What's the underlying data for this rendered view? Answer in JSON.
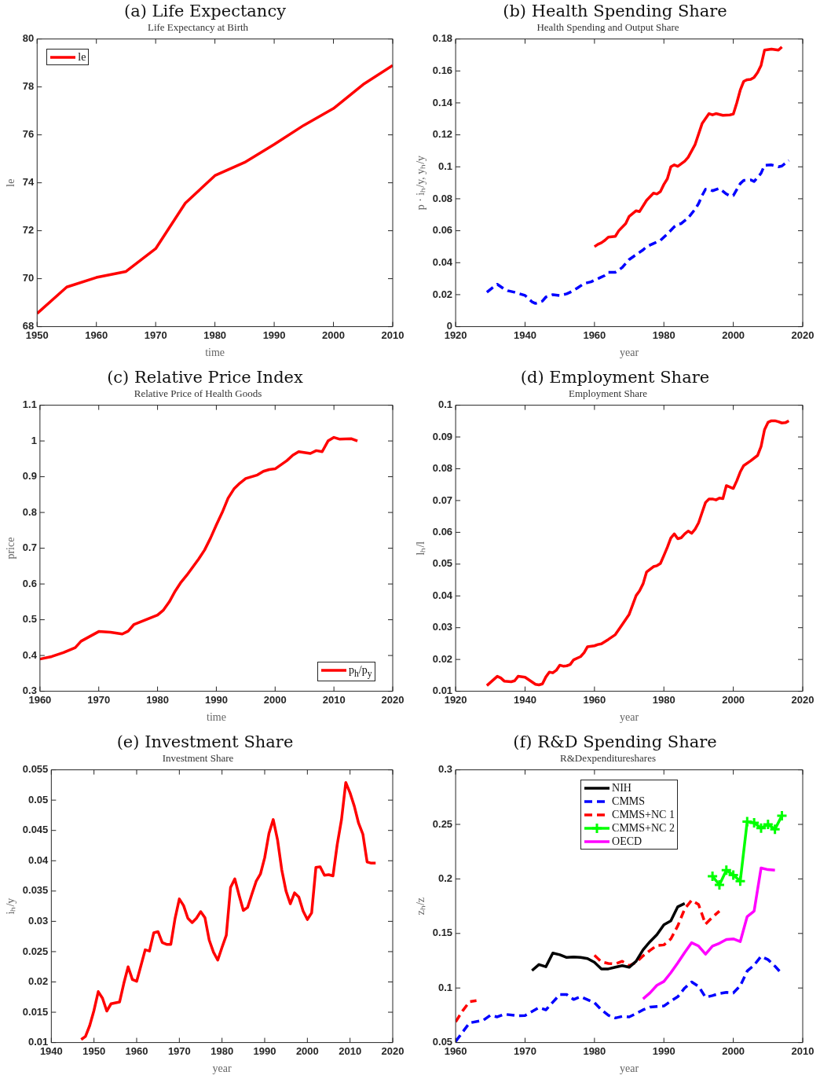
{
  "chart_data": [
    {
      "type": "line",
      "title": "(a) Life Expectancy",
      "subtitle": "Life Expectancy at Birth",
      "xlabel": "time",
      "ylabel": "le",
      "legend": "top left",
      "xlim": [
        1950,
        2010
      ],
      "xticks": [
        1950,
        1960,
        1970,
        1980,
        1990,
        2000,
        2010
      ],
      "ylim": [
        68,
        80
      ],
      "yticks": [
        68,
        70,
        72,
        74,
        76,
        78,
        80
      ],
      "series": [
        {
          "name": "le",
          "color": "#ff0000",
          "line_style": "solid",
          "x": [
            1950,
            1955,
            1960,
            1965,
            1970,
            1975,
            1980,
            1985,
            1990,
            1995,
            2000,
            2005,
            2010
          ],
          "values": [
            68.55,
            69.65,
            70.05,
            70.3,
            71.25,
            73.15,
            74.3,
            74.85,
            75.6,
            76.4,
            77.1,
            78.1,
            78.9
          ]
        }
      ]
    },
    {
      "type": "line",
      "title": "(b) Health Spending Share",
      "subtitle": "Health Spending and Output Share",
      "xlabel": "year",
      "ylabel": "p · iₕ/y, yₕ/y",
      "xlim": [
        1920,
        2020
      ],
      "xticks": [
        1920,
        1940,
        1960,
        1980,
        2000,
        2020
      ],
      "ylim": [
        0,
        0.18
      ],
      "yticks": [
        0,
        0.02,
        0.04,
        0.06,
        0.08,
        0.1,
        0.12,
        0.14,
        0.16,
        0.18
      ],
      "series": [
        {
          "color": "#ff0000",
          "line_style": "solid",
          "x": [
            1960,
            1961,
            1962,
            1963,
            1964,
            1966,
            1967,
            1969,
            1970,
            1972,
            1973,
            1975,
            1977,
            1978,
            1979,
            1980,
            1981,
            1982,
            1983,
            1984,
            1986,
            1987,
            1989,
            1991,
            1993,
            1994,
            1995,
            1997,
            1999,
            2000,
            2001,
            2002,
            2003,
            2004,
            2005,
            2006,
            2007,
            2008,
            2009,
            2011,
            2013,
            2014
          ],
          "values": [
            0.05,
            0.0515,
            0.0525,
            0.054,
            0.056,
            0.0565,
            0.06,
            0.0645,
            0.069,
            0.0725,
            0.072,
            0.079,
            0.0835,
            0.083,
            0.0845,
            0.089,
            0.0925,
            0.1,
            0.1012,
            0.1003,
            0.1035,
            0.106,
            0.114,
            0.127,
            0.1333,
            0.1325,
            0.1333,
            0.1322,
            0.1325,
            0.133,
            0.14,
            0.148,
            0.1535,
            0.1545,
            0.1547,
            0.156,
            0.159,
            0.1635,
            0.173,
            0.1737,
            0.173,
            0.175
          ]
        },
        {
          "color": "#0000ff",
          "line_style": "dashed",
          "x": [
            1929,
            1931,
            1932,
            1934,
            1935,
            1937,
            1940,
            1941,
            1942,
            1943,
            1945,
            1946,
            1948,
            1950,
            1952,
            1953,
            1955,
            1957,
            1959,
            1961,
            1963,
            1964,
            1966,
            1968,
            1970,
            1972,
            1974,
            1975,
            1977,
            1979,
            1981,
            1983,
            1984,
            1985,
            1987,
            1989,
            1990,
            1991,
            1992,
            1993,
            1994,
            1996,
            1998,
            1999,
            2000,
            2002,
            2003,
            2005,
            2006,
            2008,
            2009,
            2011,
            2013,
            2014,
            2016
          ],
          "values": [
            0.0215,
            0.025,
            0.0265,
            0.0235,
            0.0225,
            0.0215,
            0.0195,
            0.0175,
            0.0155,
            0.0145,
            0.016,
            0.0185,
            0.02,
            0.0195,
            0.0205,
            0.0215,
            0.024,
            0.027,
            0.028,
            0.03,
            0.032,
            0.034,
            0.034,
            0.037,
            0.042,
            0.045,
            0.048,
            0.05,
            0.052,
            0.054,
            0.058,
            0.0625,
            0.064,
            0.0645,
            0.068,
            0.0735,
            0.077,
            0.082,
            0.086,
            0.086,
            0.085,
            0.0865,
            0.083,
            0.0818,
            0.082,
            0.0895,
            0.0915,
            0.0918,
            0.0908,
            0.096,
            0.101,
            0.1012,
            0.1,
            0.1005,
            0.104
          ]
        }
      ]
    },
    {
      "type": "line",
      "title": "(c) Relative Price Index",
      "subtitle": "Relative Price of Health Goods",
      "xlabel": "time",
      "ylabel": "price",
      "legend": "bottom right",
      "xlim": [
        1960,
        2020
      ],
      "xticks": [
        1960,
        1970,
        1980,
        1990,
        2000,
        2010,
        2020
      ],
      "ylim": [
        0.3,
        1.1
      ],
      "yticks": [
        0.3,
        0.4,
        0.5,
        0.6,
        0.7,
        0.8,
        0.9,
        1,
        1.1
      ],
      "series": [
        {
          "name": "p$_{h}$/p$_{y}$",
          "color": "#ff0000",
          "line_style": "solid",
          "x": [
            1960,
            1962,
            1964,
            1966,
            1967,
            1970,
            1972,
            1974,
            1975,
            1976,
            1978,
            1980,
            1981,
            1982,
            1983,
            1984,
            1985,
            1987,
            1988,
            1989,
            1990,
            1991,
            1992,
            1993,
            1994,
            1995,
            1997,
            1998,
            1999,
            2000,
            2002,
            2003,
            2004,
            2006,
            2007,
            2008,
            2009,
            2010,
            2011,
            2013,
            2014
          ],
          "values": [
            0.39,
            0.397,
            0.408,
            0.422,
            0.44,
            0.467,
            0.465,
            0.46,
            0.468,
            0.487,
            0.5,
            0.513,
            0.527,
            0.55,
            0.58,
            0.605,
            0.625,
            0.67,
            0.695,
            0.728,
            0.765,
            0.8,
            0.84,
            0.866,
            0.882,
            0.895,
            0.905,
            0.915,
            0.92,
            0.922,
            0.945,
            0.96,
            0.97,
            0.965,
            0.973,
            0.97,
            1,
            1.01,
            1.005,
            1.006,
            1
          ]
        }
      ]
    },
    {
      "type": "line",
      "title": "(d) Employment Share",
      "subtitle": "Employment Share",
      "xlabel": "year",
      "ylabel": "lₕ/l",
      "xlim": [
        1920,
        2020
      ],
      "xticks": [
        1920,
        1940,
        1960,
        1980,
        2000,
        2020
      ],
      "ylim": [
        0.01,
        0.1
      ],
      "yticks": [
        0.01,
        0.02,
        0.03,
        0.04,
        0.05,
        0.06,
        0.07,
        0.08,
        0.09,
        0.1
      ],
      "series": [
        {
          "color": "#ff0000",
          "line_style": "solid",
          "x": [
            1929,
            1932,
            1933,
            1934,
            1936,
            1937,
            1938,
            1940,
            1943,
            1944,
            1945,
            1946,
            1947,
            1948,
            1949,
            1950,
            1951,
            1952,
            1953,
            1954,
            1956,
            1957,
            1958,
            1960,
            1961,
            1962,
            1964,
            1966,
            1968,
            1970,
            1972,
            1973,
            1974,
            1975,
            1977,
            1978,
            1979,
            1980,
            1981,
            1982,
            1983,
            1984,
            1985,
            1986,
            1987,
            1988,
            1989,
            1990,
            1991,
            1992,
            1993,
            1994,
            1995,
            1996,
            1997,
            1998,
            2000,
            2001,
            2002,
            2003,
            2005,
            2007,
            2008,
            2009,
            2010,
            2011,
            2012,
            2013,
            2014,
            2015,
            2016
          ],
          "values": [
            0.0118,
            0.0147,
            0.0142,
            0.0132,
            0.013,
            0.0133,
            0.0147,
            0.0144,
            0.0122,
            0.012,
            0.0123,
            0.0145,
            0.016,
            0.0158,
            0.0166,
            0.0182,
            0.0179,
            0.018,
            0.0184,
            0.0199,
            0.0209,
            0.0221,
            0.024,
            0.0243,
            0.0247,
            0.0249,
            0.0263,
            0.0278,
            0.031,
            0.0342,
            0.0401,
            0.0416,
            0.0438,
            0.0475,
            0.0492,
            0.0495,
            0.0502,
            0.0527,
            0.0553,
            0.0582,
            0.0595,
            0.058,
            0.0583,
            0.0595,
            0.0604,
            0.0597,
            0.061,
            0.063,
            0.0662,
            0.0694,
            0.0705,
            0.0705,
            0.0702,
            0.0708,
            0.0706,
            0.0747,
            0.0738,
            0.0762,
            0.079,
            0.081,
            0.0825,
            0.0842,
            0.087,
            0.0923,
            0.0946,
            0.0951,
            0.0951,
            0.0948,
            0.0944,
            0.0945,
            0.0951
          ]
        }
      ]
    },
    {
      "type": "line",
      "title": "(e) Investment Share",
      "subtitle": "Investment Share",
      "xlabel": "year",
      "ylabel": "iₕ/y",
      "xlim": [
        1940,
        2020
      ],
      "xticks": [
        1940,
        1950,
        1960,
        1970,
        1980,
        1990,
        2000,
        2010,
        2020
      ],
      "ylim": [
        0.01,
        0.055
      ],
      "yticks": [
        0.01,
        0.015,
        0.02,
        0.025,
        0.03,
        0.035,
        0.04,
        0.045,
        0.05,
        0.055
      ],
      "series": [
        {
          "color": "#ff0000",
          "line_style": "solid",
          "x": [
            1947,
            1948,
            1949,
            1950,
            1951,
            1952,
            1953,
            1954,
            1956,
            1957,
            1958,
            1959,
            1960,
            1961,
            1962,
            1963,
            1964,
            1965,
            1966,
            1967,
            1968,
            1969,
            1970,
            1971,
            1972,
            1973,
            1974,
            1975,
            1976,
            1977,
            1978,
            1979,
            1980,
            1981,
            1982,
            1983,
            1984,
            1985,
            1986,
            1987,
            1988,
            1989,
            1990,
            1991,
            1992,
            1993,
            1994,
            1995,
            1996,
            1997,
            1998,
            1999,
            2000,
            2001,
            2002,
            2003,
            2004,
            2005,
            2006,
            2007,
            2008,
            2009,
            2010,
            2011,
            2012,
            2013,
            2014,
            2015,
            2016
          ],
          "values": [
            0.0105,
            0.011,
            0.0128,
            0.0153,
            0.0184,
            0.0173,
            0.0152,
            0.0164,
            0.0167,
            0.0198,
            0.0225,
            0.0204,
            0.0201,
            0.0227,
            0.0253,
            0.0251,
            0.0281,
            0.0283,
            0.0265,
            0.0262,
            0.0262,
            0.0305,
            0.0337,
            0.0326,
            0.0305,
            0.0298,
            0.0305,
            0.0316,
            0.0306,
            0.0269,
            0.0249,
            0.0236,
            0.0257,
            0.0277,
            0.0356,
            0.037,
            0.0343,
            0.0318,
            0.0323,
            0.0345,
            0.0366,
            0.0378,
            0.0405,
            0.0445,
            0.0468,
            0.0435,
            0.0385,
            0.035,
            0.0329,
            0.0347,
            0.034,
            0.0317,
            0.0303,
            0.0314,
            0.0389,
            0.039,
            0.0376,
            0.0377,
            0.0375,
            0.0427,
            0.0468,
            0.0529,
            0.0512,
            0.049,
            0.0462,
            0.0444,
            0.0398,
            0.0396,
            0.0396
          ]
        }
      ]
    },
    {
      "type": "line",
      "title": "(f) R&D Spending Share",
      "subtitle": "R&Dexpenditureshares",
      "xlabel": "year",
      "ylabel": "zₕ/z",
      "legend": "top",
      "xlim": [
        1960,
        2010
      ],
      "xticks": [
        1960,
        1970,
        1980,
        1990,
        2000,
        2010
      ],
      "ylim": [
        0.05,
        0.3
      ],
      "yticks": [
        0.05,
        0.1,
        0.15,
        0.2,
        0.25,
        0.3
      ],
      "series": [
        {
          "name": "NIH",
          "color": "#000000",
          "line_style": "solid",
          "x": [
            1971,
            1972,
            1973,
            1974,
            1975,
            1976,
            1977,
            1978,
            1979,
            1980,
            1981,
            1982,
            1983,
            1984,
            1985,
            1986,
            1987,
            1988,
            1989,
            1990,
            1991,
            1992,
            1993
          ],
          "values": [
            0.116,
            0.1215,
            0.1195,
            0.132,
            0.1305,
            0.128,
            0.1285,
            0.128,
            0.127,
            0.1235,
            0.1175,
            0.1175,
            0.119,
            0.1205,
            0.119,
            0.1245,
            0.135,
            0.1425,
            0.149,
            0.158,
            0.1615,
            0.1745,
            0.1775
          ]
        },
        {
          "name": "CMMS",
          "color": "#0000ff",
          "line_style": "dashed",
          "x": [
            1960,
            1962,
            1964,
            1965,
            1966,
            1967,
            1969,
            1970,
            1972,
            1973,
            1975,
            1976,
            1977,
            1978,
            1980,
            1981,
            1982,
            1983,
            1984,
            1985,
            1986,
            1987,
            1988,
            1989,
            1990,
            1991,
            1992,
            1993,
            1994,
            1995,
            1996,
            1997,
            1998,
            1999,
            2000,
            2001,
            2002,
            2003,
            2004,
            2005,
            2006,
            2007
          ],
          "values": [
            0.051,
            0.068,
            0.0705,
            0.075,
            0.0735,
            0.076,
            0.0745,
            0.0748,
            0.082,
            0.08,
            0.094,
            0.094,
            0.0895,
            0.092,
            0.0865,
            0.08,
            0.075,
            0.0725,
            0.074,
            0.0735,
            0.0765,
            0.08,
            0.0825,
            0.083,
            0.0835,
            0.088,
            0.092,
            0.1,
            0.1055,
            0.1015,
            0.0915,
            0.093,
            0.095,
            0.096,
            0.0955,
            0.102,
            0.1155,
            0.121,
            0.129,
            0.126,
            0.12,
            0.113
          ]
        },
        {
          "name": "CMMS+NC 1",
          "color": "#ff0000",
          "line_style": "dashed",
          "x": [
            1960,
            1961,
            1962,
            1963,
            1970,
            1980,
            1981,
            1982,
            1983,
            1984,
            1985,
            1986,
            1987,
            1988,
            1989,
            1990,
            1991,
            1992,
            1993,
            1994,
            1995,
            1996,
            1997,
            1998
          ],
          "values": [
            0.069,
            0.079,
            0.0875,
            0.0885,
            null,
            0.13,
            0.124,
            0.1225,
            0.122,
            0.1245,
            0.1205,
            0.1235,
            0.1295,
            0.1345,
            0.139,
            0.1395,
            0.145,
            0.157,
            0.1725,
            0.1805,
            0.1765,
            0.1585,
            0.165,
            0.1705
          ]
        },
        {
          "name": "CMMS+NC 2",
          "color": "#00ff00",
          "line_style": "solid",
          "marker": "cross",
          "x": [
            1997,
            1998,
            1999,
            2000,
            2001,
            2002,
            2003,
            2004,
            2005,
            2006,
            2007
          ],
          "values": [
            0.2025,
            0.1945,
            0.208,
            0.2035,
            0.198,
            0.2525,
            0.2515,
            0.2465,
            0.25,
            0.2455,
            0.258
          ]
        },
        {
          "name": "OECD",
          "color": "#ff00ff",
          "line_style": "solid",
          "x": [
            1987,
            1988,
            1989,
            1990,
            1991,
            1992,
            1993,
            1994,
            1995,
            1996,
            1997,
            1998,
            1999,
            2000,
            2001,
            2002,
            2003,
            2004,
            2005,
            2006
          ],
          "values": [
            0.09,
            0.0955,
            0.1025,
            0.106,
            0.114,
            0.123,
            0.1325,
            0.1415,
            0.1385,
            0.131,
            0.1385,
            0.141,
            0.1445,
            0.145,
            0.1425,
            0.1655,
            0.1705,
            0.21,
            0.2085,
            0.208
          ]
        }
      ]
    }
  ]
}
